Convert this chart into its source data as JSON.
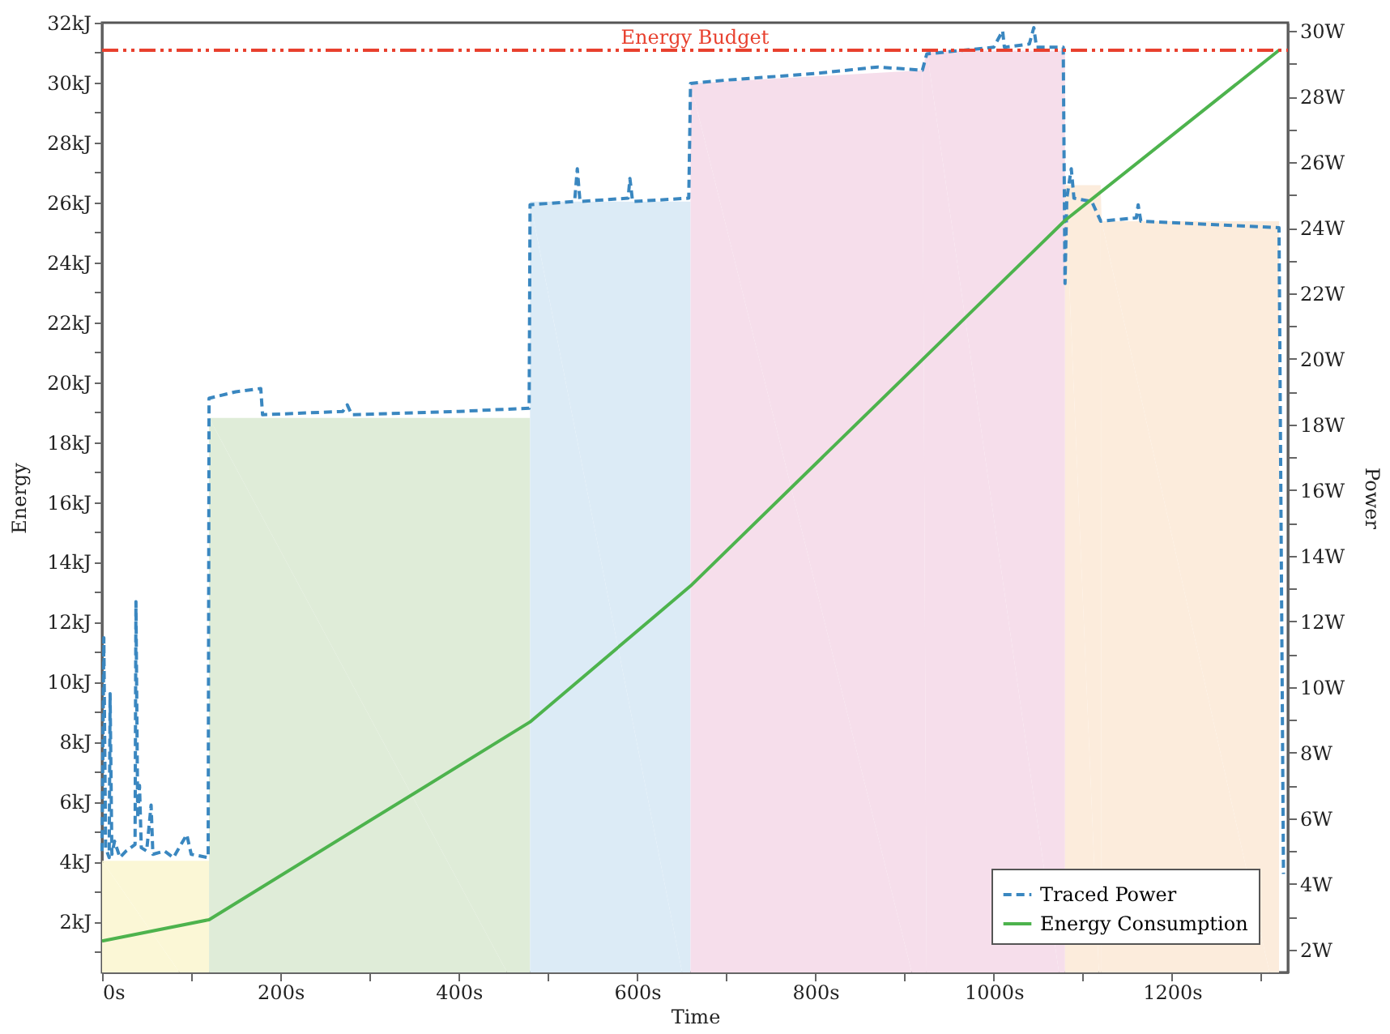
{
  "chart_data": {
    "type": "line",
    "xlabel": "Time",
    "ylabel": "Energy",
    "y2label": "Power",
    "xlim": [
      0,
      1330
    ],
    "xticks": [
      {
        "value": 0,
        "label": "0s"
      },
      {
        "value": 100,
        "label": null
      },
      {
        "value": 200,
        "label": "200s"
      },
      {
        "value": 300,
        "label": null
      },
      {
        "value": 400,
        "label": "400s"
      },
      {
        "value": 500,
        "label": null
      },
      {
        "value": 600,
        "label": "600s"
      },
      {
        "value": 700,
        "label": null
      },
      {
        "value": 800,
        "label": "800s"
      },
      {
        "value": 900,
        "label": null
      },
      {
        "value": 1000,
        "label": "1000s"
      },
      {
        "value": 1100,
        "label": null
      },
      {
        "value": 1200,
        "label": "1200s"
      },
      {
        "value": 1300,
        "label": null
      }
    ],
    "ylim": [
      0.3,
      32
    ],
    "yticks": [
      {
        "value": 1,
        "label": null
      },
      {
        "value": 2,
        "label": "2kJ"
      },
      {
        "value": 3,
        "label": null
      },
      {
        "value": 4,
        "label": "4kJ"
      },
      {
        "value": 5,
        "label": null
      },
      {
        "value": 6,
        "label": "6kJ"
      },
      {
        "value": 7,
        "label": null
      },
      {
        "value": 8,
        "label": "8kJ"
      },
      {
        "value": 9,
        "label": null
      },
      {
        "value": 10,
        "label": "10kJ"
      },
      {
        "value": 11,
        "label": null
      },
      {
        "value": 12,
        "label": "12kJ"
      },
      {
        "value": 13,
        "label": null
      },
      {
        "value": 14,
        "label": "14kJ"
      },
      {
        "value": 15,
        "label": null
      },
      {
        "value": 16,
        "label": "16kJ"
      },
      {
        "value": 17,
        "label": null
      },
      {
        "value": 18,
        "label": "18kJ"
      },
      {
        "value": 19,
        "label": null
      },
      {
        "value": 20,
        "label": "20kJ"
      },
      {
        "value": 21,
        "label": null
      },
      {
        "value": 22,
        "label": "22kJ"
      },
      {
        "value": 23,
        "label": null
      },
      {
        "value": 24,
        "label": "24kJ"
      },
      {
        "value": 25,
        "label": null
      },
      {
        "value": 26,
        "label": "26kJ"
      },
      {
        "value": 27,
        "label": null
      },
      {
        "value": 28,
        "label": "28kJ"
      },
      {
        "value": 29,
        "label": null
      },
      {
        "value": 30,
        "label": "30kJ"
      },
      {
        "value": 31,
        "label": null
      },
      {
        "value": 32,
        "label": "32kJ"
      }
    ],
    "y2lim": [
      1.3,
      30.25
    ],
    "y2ticks": [
      {
        "value": 2,
        "label": "2W"
      },
      {
        "value": 3,
        "label": null
      },
      {
        "value": 4,
        "label": "4W"
      },
      {
        "value": 5,
        "label": null
      },
      {
        "value": 6,
        "label": "6W"
      },
      {
        "value": 7,
        "label": null
      },
      {
        "value": 8,
        "label": "8W"
      },
      {
        "value": 9,
        "label": null
      },
      {
        "value": 10,
        "label": "10W"
      },
      {
        "value": 11,
        "label": null
      },
      {
        "value": 12,
        "label": "12W"
      },
      {
        "value": 13,
        "label": null
      },
      {
        "value": 14,
        "label": "14W"
      },
      {
        "value": 15,
        "label": null
      },
      {
        "value": 16,
        "label": "16W"
      },
      {
        "value": 17,
        "label": null
      },
      {
        "value": 18,
        "label": "18W"
      },
      {
        "value": 19,
        "label": null
      },
      {
        "value": 20,
        "label": "20W"
      },
      {
        "value": 21,
        "label": null
      },
      {
        "value": 22,
        "label": "22W"
      },
      {
        "value": 23,
        "label": null
      },
      {
        "value": 24,
        "label": "24W"
      },
      {
        "value": 25,
        "label": null
      },
      {
        "value": 26,
        "label": "26W"
      },
      {
        "value": 27,
        "label": null
      },
      {
        "value": 28,
        "label": "28W"
      },
      {
        "value": 29,
        "label": null
      },
      {
        "value": 30,
        "label": "30W"
      }
    ],
    "grid": false,
    "legend": "bottom right",
    "ref_lines": [
      {
        "axis": "y",
        "value": 31.08,
        "label": "Energy Budget",
        "color": "#e8402e",
        "line_style": "dashed"
      }
    ],
    "series": [
      {
        "type": "area",
        "axis": "y2",
        "color": "#fbf7d6",
        "x": [
          0,
          120
        ],
        "values": [
          4.7,
          4.7
        ]
      },
      {
        "type": "area",
        "axis": "y2",
        "color": "#dfecd8",
        "x": [
          120,
          480
        ],
        "values": [
          18.2,
          18.2
        ]
      },
      {
        "type": "area",
        "axis": "y2",
        "color": "#dcebf6",
        "x": [
          480,
          660
        ],
        "values": [
          24.8,
          24.8
        ]
      },
      {
        "type": "area",
        "axis": "y2",
        "color": "#f6deeb",
        "x": [
          660,
          920,
          925,
          1080
        ],
        "values": [
          28.4,
          28.8,
          29.4,
          29.4
        ]
      },
      {
        "type": "area",
        "axis": "y2",
        "color": "#fcecdc",
        "x": [
          1080,
          1120,
          1121,
          1320
        ],
        "values": [
          25.3,
          25.3,
          24.2,
          24.2
        ]
      },
      {
        "axis": "y2",
        "name": "Traced Power",
        "color": "#3a87c0",
        "line_style": "dashed",
        "x": [
          0,
          2,
          4,
          8,
          9,
          11,
          14,
          20,
          27,
          37,
          38,
          40,
          42,
          44,
          50,
          55,
          57,
          70,
          80,
          95,
          100,
          119,
          120,
          150,
          178,
          180,
          270,
          275,
          280,
          400,
          479,
          480,
          530,
          533,
          536,
          590,
          592,
          595,
          658,
          660,
          700,
          800,
          870,
          920,
          925,
          1000,
          1010,
          1012,
          1040,
          1045,
          1048,
          1078,
          1080,
          1082,
          1087,
          1090,
          1110,
          1120,
          1160,
          1162,
          1165,
          1320,
          1325
        ],
        "values": [
          5.0,
          11.5,
          5.1,
          4.8,
          9.8,
          4.9,
          5.3,
          4.8,
          5.0,
          5.2,
          12.6,
          6.0,
          7.0,
          5.1,
          5.0,
          6.4,
          4.9,
          5.0,
          4.8,
          5.5,
          4.9,
          4.8,
          18.8,
          19.0,
          19.1,
          18.3,
          18.4,
          18.6,
          18.3,
          18.4,
          18.5,
          24.7,
          24.8,
          25.8,
          24.8,
          24.9,
          25.5,
          24.8,
          24.9,
          28.4,
          28.5,
          28.7,
          28.9,
          28.8,
          29.3,
          29.5,
          30.0,
          29.5,
          29.6,
          30.1,
          29.5,
          29.5,
          22.3,
          24.9,
          25.8,
          24.9,
          24.8,
          24.2,
          24.3,
          24.7,
          24.2,
          24.0,
          4.3
        ]
      },
      {
        "axis": "y",
        "name": "Energy Consumption",
        "color": "#4db34d",
        "line_style": "solid",
        "x": [
          0,
          120,
          480,
          660,
          1080,
          1320
        ],
        "values": [
          1.35,
          2.06,
          8.66,
          13.2,
          25.4,
          31.08
        ]
      }
    ]
  }
}
